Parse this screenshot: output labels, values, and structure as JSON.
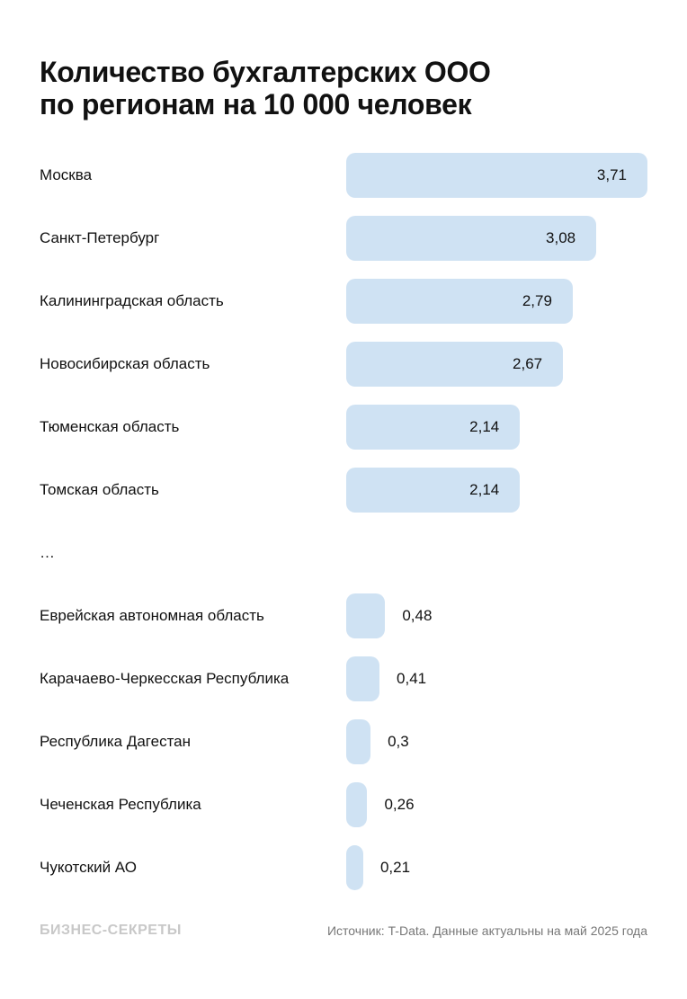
{
  "chart_data": {
    "type": "bar",
    "orientation": "horizontal",
    "title_lines": [
      "Количество бухгалтерских ООО",
      "по регионам на 10 000 человек"
    ],
    "bar_color": "#cfe2f3",
    "categories": [
      "Москва",
      "Санкт-Петербург",
      "Калининградская область",
      "Новосибирская область",
      "Тюменская область",
      "Томская область",
      "…",
      "Еврейская автономная область",
      "Карачаево-Черкесская Республика",
      "Республика Дагестан",
      "Чеченская Республика",
      "Чукотский АО"
    ],
    "values": [
      3.71,
      3.08,
      2.79,
      2.67,
      2.14,
      2.14,
      null,
      0.48,
      0.41,
      0.3,
      0.26,
      0.21
    ],
    "value_labels": [
      "3,71",
      "3,08",
      "2,79",
      "2,67",
      "2,14",
      "2,14",
      "",
      "0,48",
      "0,41",
      "0,3",
      "0,26",
      "0,21"
    ]
  },
  "footer": {
    "logo": "БИЗНЕС-СЕКРЕТЫ",
    "source": "Источник: T-Data. Данные актуальны на май 2025 года"
  }
}
